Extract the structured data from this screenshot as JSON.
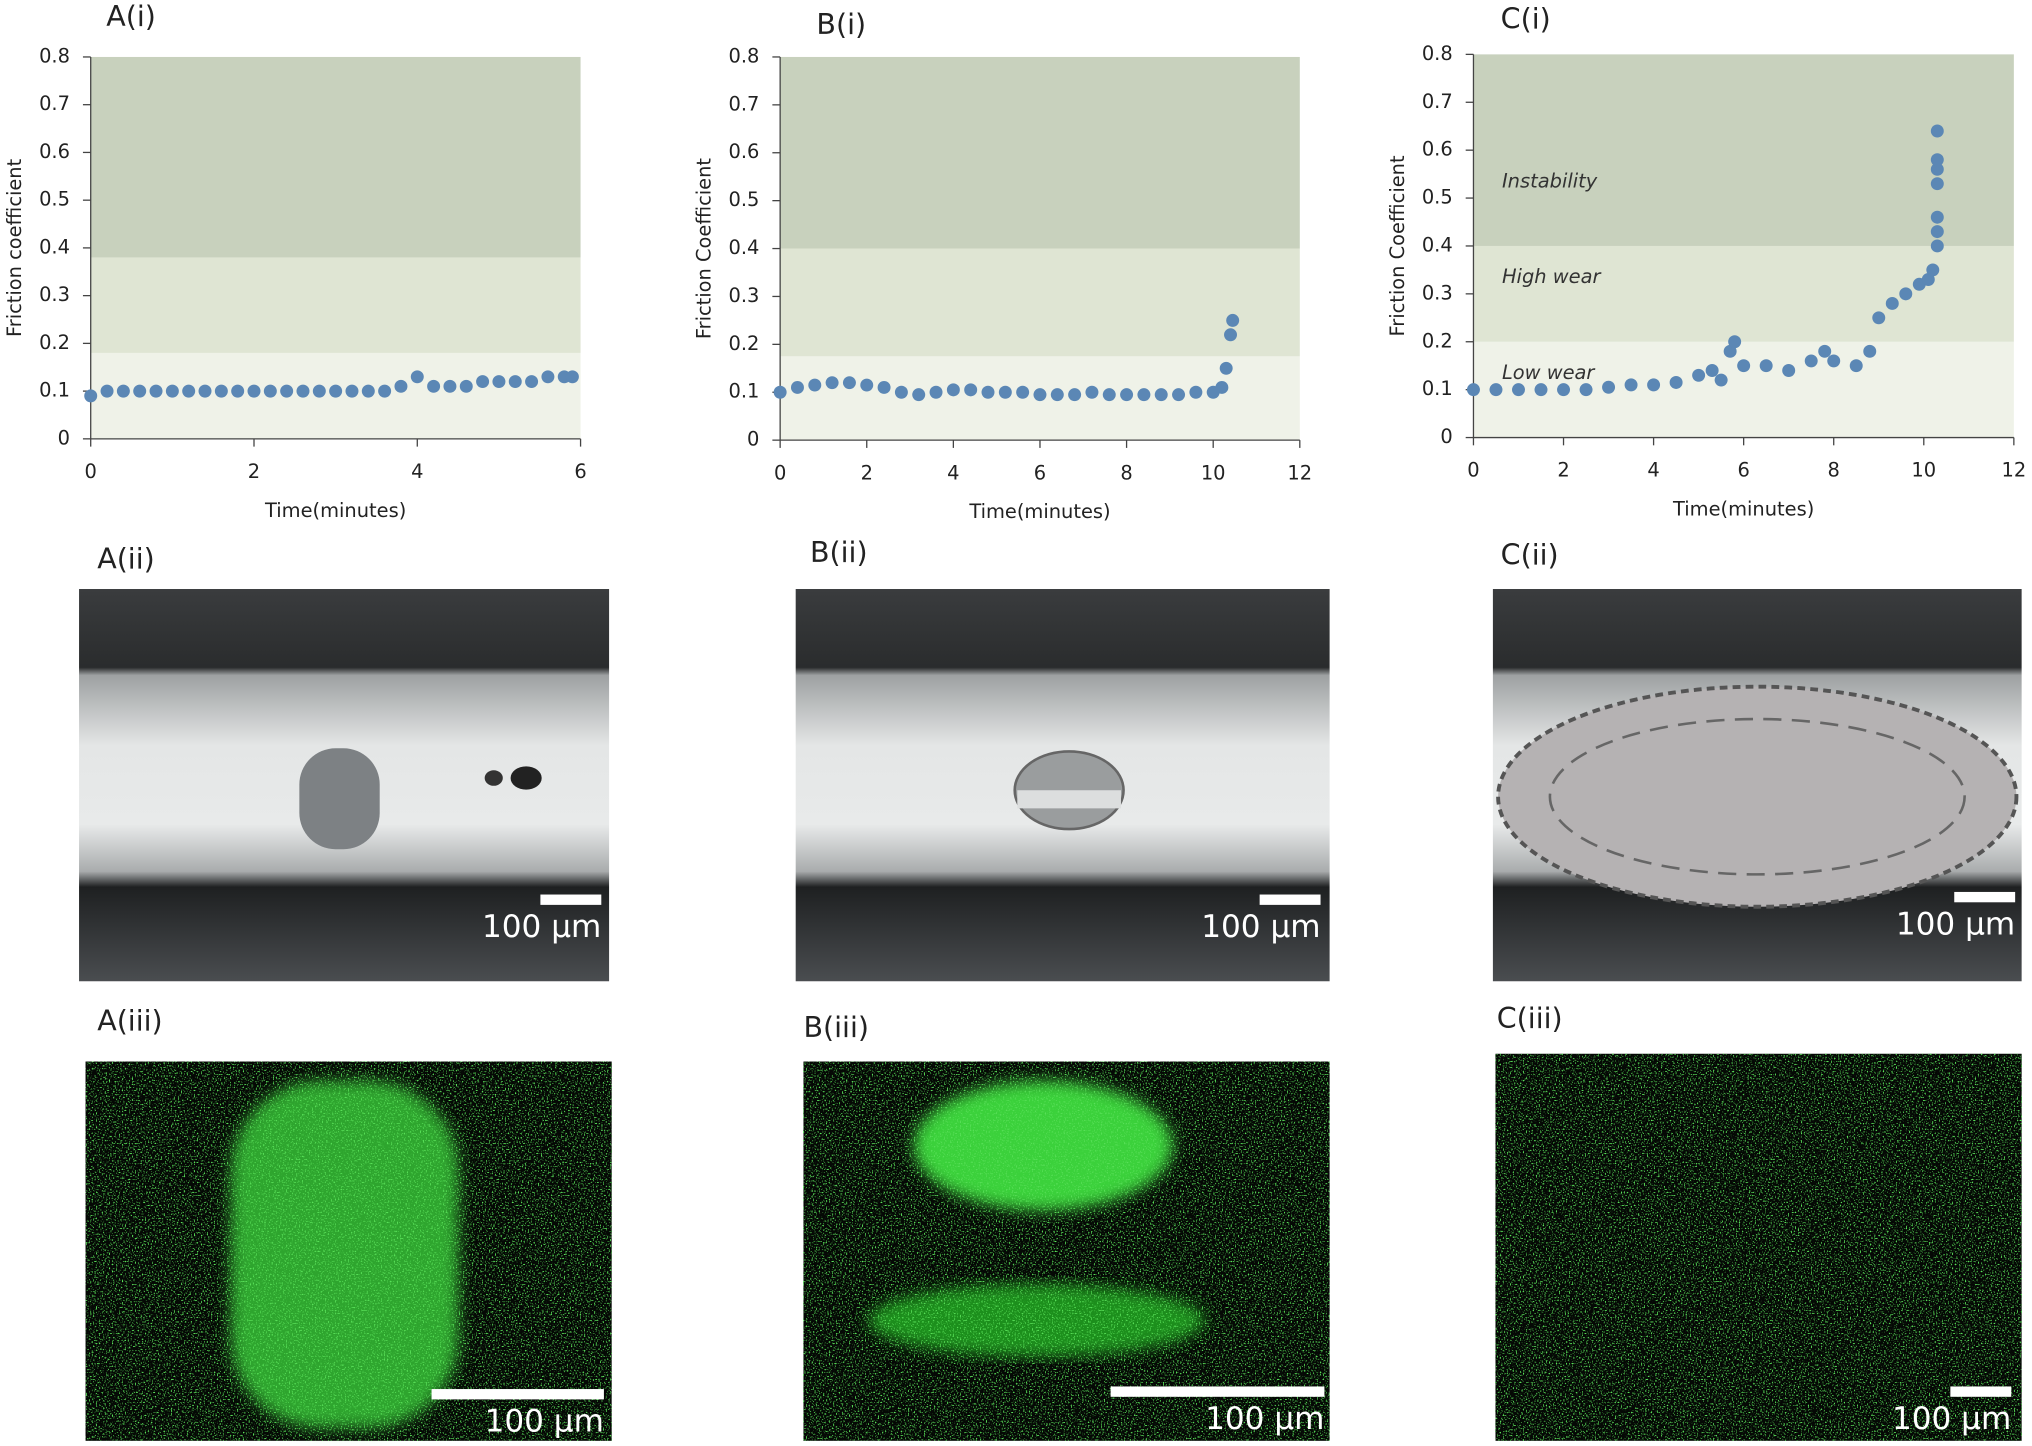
{
  "chart_data": [
    {
      "type": "scatter",
      "title": "A(i)",
      "x_label": "Time(minutes)",
      "y_label": "Friction coefficient",
      "color": "#5b87b5",
      "xlim": [
        0,
        6
      ],
      "xticks": [
        0,
        2,
        4,
        6
      ],
      "ylim": [
        0,
        0.8
      ],
      "yticks": [
        0,
        0.1,
        0.2,
        0.3,
        0.4,
        0.5,
        0.6,
        0.7,
        0.8
      ],
      "bands": [
        {
          "from": 0,
          "to": 0.18,
          "color": "#eff2e8"
        },
        {
          "from": 0.18,
          "to": 0.38,
          "color": "#dfe5d3"
        },
        {
          "from": 0.38,
          "to": 0.8,
          "color": "#c8d1bd"
        }
      ],
      "x": [
        0,
        0.2,
        0.4,
        0.6,
        0.8,
        1,
        1.2,
        1.4,
        1.6,
        1.8,
        2,
        2.2,
        2.4,
        2.6,
        2.8,
        3,
        3.2,
        3.4,
        3.6,
        3.8,
        4,
        4.2,
        4.4,
        4.6,
        4.8,
        5,
        5.2,
        5.4,
        5.6,
        5.8,
        5.9
      ],
      "values": [
        0.09,
        0.1,
        0.1,
        0.1,
        0.1,
        0.1,
        0.1,
        0.1,
        0.1,
        0.1,
        0.1,
        0.1,
        0.1,
        0.1,
        0.1,
        0.1,
        0.1,
        0.1,
        0.1,
        0.11,
        0.13,
        0.11,
        0.11,
        0.11,
        0.12,
        0.12,
        0.12,
        0.12,
        0.13,
        0.13,
        0.13
      ]
    },
    {
      "type": "scatter",
      "title": "B(i)",
      "x_label": "Time(minutes)",
      "y_label": "Friction Coefficient",
      "color": "#5b87b5",
      "xlim": [
        0,
        12
      ],
      "xticks": [
        0,
        2,
        4,
        6,
        8,
        10,
        12
      ],
      "ylim": [
        0,
        0.8
      ],
      "yticks": [
        0,
        0.1,
        0.2,
        0.3,
        0.4,
        0.5,
        0.6,
        0.7,
        0.8
      ],
      "bands": [
        {
          "from": 0,
          "to": 0.175,
          "color": "#eff2e8"
        },
        {
          "from": 0.175,
          "to": 0.4,
          "color": "#dfe5d3"
        },
        {
          "from": 0.4,
          "to": 0.8,
          "color": "#c8d1bd"
        }
      ],
      "x": [
        0,
        0.4,
        0.8,
        1.2,
        1.6,
        2,
        2.4,
        2.8,
        3.2,
        3.6,
        4,
        4.4,
        4.8,
        5.2,
        5.6,
        6,
        6.4,
        6.8,
        7.2,
        7.6,
        8,
        8.4,
        8.8,
        9.2,
        9.6,
        10,
        10.2,
        10.3,
        10.4,
        10.45
      ],
      "values": [
        0.1,
        0.11,
        0.115,
        0.12,
        0.12,
        0.115,
        0.11,
        0.1,
        0.095,
        0.1,
        0.105,
        0.105,
        0.1,
        0.1,
        0.1,
        0.095,
        0.095,
        0.095,
        0.1,
        0.095,
        0.095,
        0.095,
        0.095,
        0.095,
        0.1,
        0.1,
        0.11,
        0.15,
        0.22,
        0.25
      ]
    },
    {
      "type": "scatter",
      "title": "C(i)",
      "x_label": "Time(minutes)",
      "y_label": "Friction Coefficient",
      "color": "#5b87b5",
      "xlim": [
        0,
        12
      ],
      "xticks": [
        0,
        2,
        4,
        6,
        8,
        10,
        12
      ],
      "ylim": [
        0,
        0.8
      ],
      "yticks": [
        0,
        0.1,
        0.2,
        0.3,
        0.4,
        0.5,
        0.6,
        0.7,
        0.8
      ],
      "bands": [
        {
          "from": 0,
          "to": 0.2,
          "color": "#eff2e8",
          "label": "Low wear"
        },
        {
          "from": 0.2,
          "to": 0.4,
          "color": "#dfe5d3",
          "label": "High wear"
        },
        {
          "from": 0.4,
          "to": 0.8,
          "color": "#c8d1bd",
          "label": "Instability"
        }
      ],
      "x": [
        0,
        0.5,
        1,
        1.5,
        2,
        2.5,
        3,
        3.5,
        4,
        4.5,
        5,
        5.3,
        5.5,
        5.7,
        5.8,
        6,
        6.5,
        7,
        7.5,
        7.8,
        8,
        8.5,
        8.8,
        9,
        9.3,
        9.6,
        9.9,
        10.1,
        10.2,
        10.3,
        10.3,
        10.3,
        10.3,
        10.3,
        10.3,
        10.3
      ],
      "values": [
        0.1,
        0.1,
        0.1,
        0.1,
        0.1,
        0.1,
        0.105,
        0.11,
        0.11,
        0.115,
        0.13,
        0.14,
        0.12,
        0.18,
        0.2,
        0.15,
        0.15,
        0.14,
        0.16,
        0.18,
        0.16,
        0.15,
        0.18,
        0.25,
        0.28,
        0.3,
        0.32,
        0.33,
        0.35,
        0.4,
        0.43,
        0.46,
        0.53,
        0.56,
        0.58,
        0.64
      ]
    }
  ],
  "images": [
    {
      "label": "A(ii)",
      "scale": "100 µm"
    },
    {
      "label": "B(ii)",
      "scale": "100 µm"
    },
    {
      "label": "C(ii)",
      "scale": "100 µm"
    },
    {
      "label": "A(iii)",
      "scale": "100 µm"
    },
    {
      "label": "B(iii)",
      "scale": "100 µm"
    },
    {
      "label": "C(iii)",
      "scale": "100 µm"
    }
  ]
}
